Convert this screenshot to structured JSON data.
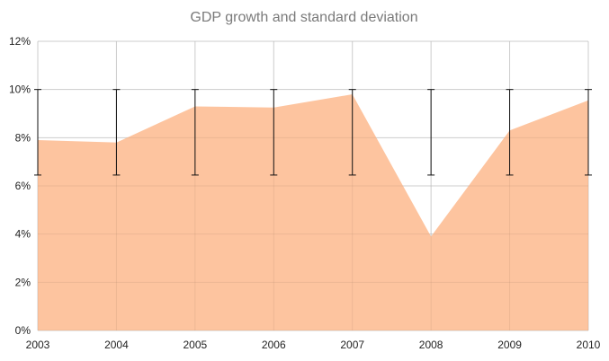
{
  "chart_data": {
    "type": "area",
    "title": "GDP growth and standard deviation",
    "xlabel": "",
    "ylabel": "",
    "categories": [
      "2003",
      "2004",
      "2005",
      "2006",
      "2007",
      "2008",
      "2009",
      "2010"
    ],
    "series": [
      {
        "values": [
          7.9,
          7.8,
          9.3,
          9.25,
          9.8,
          3.9,
          8.3,
          9.55
        ],
        "color": "#fdc19a"
      }
    ],
    "error_bars": {
      "low": [
        6.45,
        6.45,
        6.45,
        6.45,
        6.45,
        6.45,
        6.45,
        6.45
      ],
      "high": [
        10.0,
        10.0,
        10.0,
        10.0,
        10.0,
        10.0,
        10.0,
        10.0
      ],
      "color": "#111111"
    },
    "ylim": [
      0,
      12
    ],
    "yticks": [
      0,
      2,
      4,
      6,
      8,
      10,
      12
    ],
    "ytick_labels": [
      "0%",
      "2%",
      "4%",
      "6%",
      "8%",
      "10%",
      "12%"
    ],
    "grid": true,
    "grid_color": "#d9d9d9",
    "legend": "none"
  }
}
